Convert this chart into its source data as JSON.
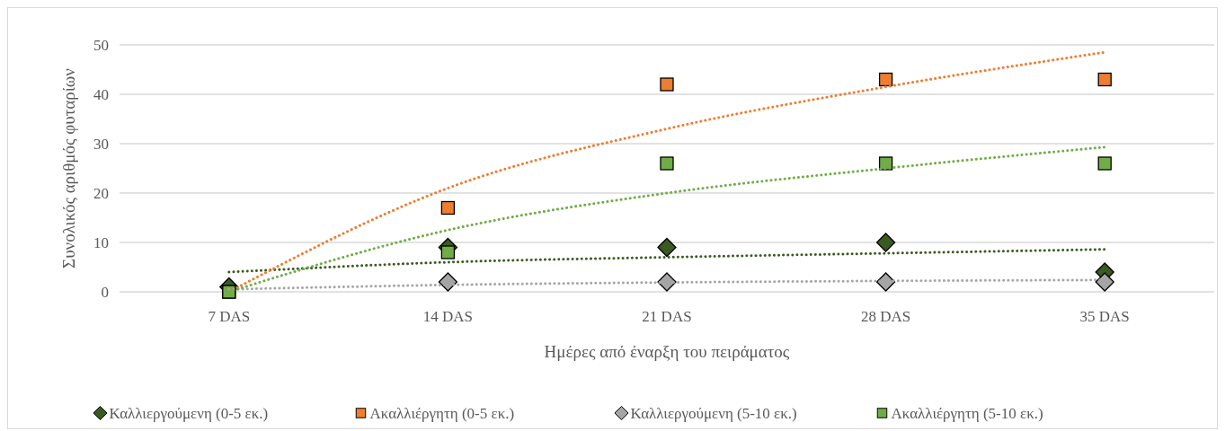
{
  "chart_data": {
    "type": "scatter",
    "xlabel": "Ημέρες από έναρξη του πειράματος",
    "ylabel": "Συνολικός αριθμός φυταρίων",
    "categories": [
      "7 DAS",
      "14 DAS",
      "21 DAS",
      "28 DAS",
      "35 DAS"
    ],
    "ylim": [
      0,
      50
    ],
    "yticks": [
      0,
      10,
      20,
      30,
      40,
      50
    ],
    "grid": "y",
    "legend": "bottom",
    "series": [
      {
        "type": "line",
        "color": "#3a5a22",
        "line_style": "dotted",
        "values": [
          4,
          6,
          7,
          7.8,
          8.6
        ]
      },
      {
        "type": "line",
        "color": "#ed7d31",
        "line_style": "dotted",
        "values": [
          0,
          21,
          33,
          41.5,
          48.5
        ]
      },
      {
        "type": "line",
        "color": "#a5a5a5",
        "line_style": "dotted",
        "values": [
          0.5,
          1.4,
          1.9,
          2.2,
          2.4
        ]
      },
      {
        "type": "line",
        "color": "#70ad47",
        "line_style": "dotted",
        "values": [
          0,
          12.5,
          20,
          25,
          29.3
        ]
      },
      {
        "name": "Καλλιεργούμενη (0-5 εκ.)",
        "color": "#3a5a22",
        "marker": "diamond",
        "values": [
          1,
          9,
          9,
          10,
          4
        ]
      },
      {
        "name": "Ακαλλιέργητη (0-5 εκ.)",
        "color": "#ed7d31",
        "marker": "square",
        "values": [
          0,
          17,
          42,
          43,
          43
        ]
      },
      {
        "name": "Καλλιεργούμενη (5-10 εκ.)",
        "color": "#a5a5a5",
        "marker": "diamond",
        "values": [
          null,
          2,
          2,
          2,
          2
        ]
      },
      {
        "name": "Ακαλλιέργητη (5-10 εκ.)",
        "color": "#70ad47",
        "marker": "square",
        "values": [
          0,
          8,
          26,
          26,
          26
        ]
      }
    ]
  }
}
